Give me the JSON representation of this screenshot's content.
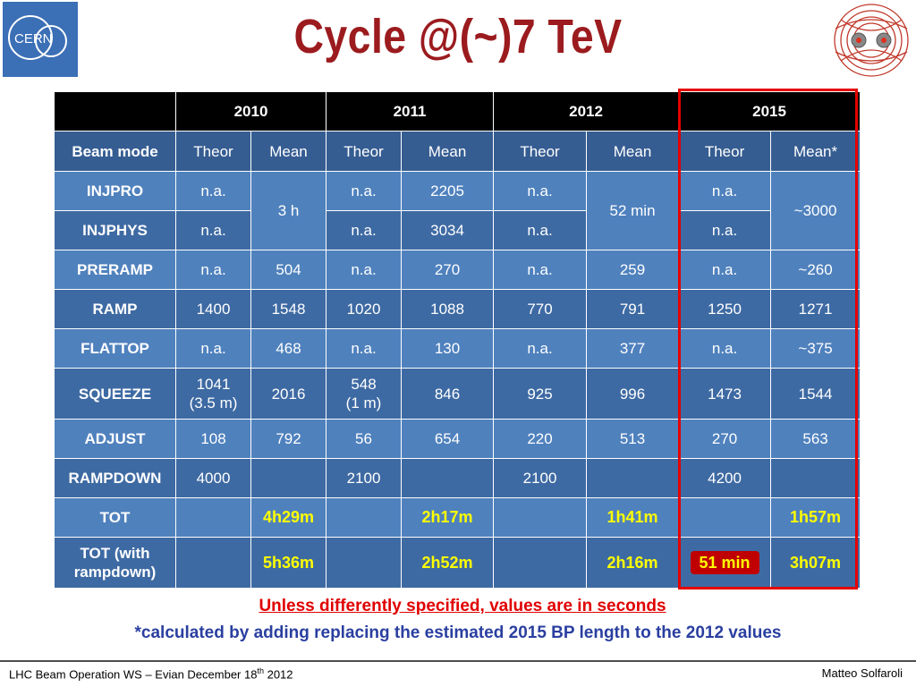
{
  "title": "Cycle @(~)7 TeV",
  "logos": {
    "cern_text": "CERN"
  },
  "table": {
    "years": [
      "",
      "2010",
      "2011",
      "2012",
      "2015"
    ],
    "sub": [
      "Beam mode",
      "Theor",
      "Mean",
      "Theor",
      "Mean",
      "Theor",
      "Mean",
      "Theor",
      "Mean*"
    ],
    "rows": [
      [
        "INJPRO",
        "n.a.",
        "3 h",
        "n.a.",
        "2205",
        "n.a.",
        "52 min",
        "n.a.",
        "~3000"
      ],
      [
        "INJPHYS",
        "n.a.",
        "",
        "n.a.",
        "3034",
        "n.a.",
        "",
        "n.a.",
        ""
      ],
      [
        "PRERAMP",
        "n.a.",
        "504",
        "n.a.",
        "270",
        "n.a.",
        "259",
        "n.a.",
        "~260"
      ],
      [
        "RAMP",
        "1400",
        "1548",
        "1020",
        "1088",
        "770",
        "791",
        "1250",
        "1271"
      ],
      [
        "FLATTOP",
        "n.a.",
        "468",
        "n.a.",
        "130",
        "n.a.",
        "377",
        "n.a.",
        "~375"
      ],
      [
        "SQUEEZE",
        "1041",
        "2016",
        "548",
        "846",
        "925",
        "996",
        "1473",
        "1544"
      ],
      [
        "ADJUST",
        "108",
        "792",
        "56",
        "654",
        "220",
        "513",
        "270",
        "563"
      ],
      [
        "RAMPDOWN",
        "4000",
        "",
        "2100",
        "",
        "2100",
        "",
        "4200",
        ""
      ],
      [
        "TOT",
        "",
        "4h29m",
        "",
        "2h17m",
        "",
        "1h41m",
        "",
        "1h57m"
      ],
      [
        "TOT (with",
        "",
        "5h36m",
        "",
        "2h52m",
        "",
        "2h16m",
        "51 min",
        "3h07m"
      ]
    ],
    "squeeze_sub": [
      "(3.5 m)",
      "(1 m)"
    ],
    "tot2_sub": "rampdown)"
  },
  "notes": {
    "line1": "Unless differently specified, values are in seconds",
    "line2": "*calculated by adding replacing the estimated 2015 BP length to the 2012 values"
  },
  "footer": {
    "left": "LHC Beam Operation WS – Evian December 18",
    "left_sup": "th",
    "left_end": " 2012",
    "right": "Matteo Solfaroli"
  },
  "colors": {
    "title": "#9b1b1e",
    "header": "#000000",
    "cell_light": "#4f81bd",
    "cell_dark": "#3e6aa3",
    "highlight": "#ffff00",
    "box": "#e60000"
  }
}
